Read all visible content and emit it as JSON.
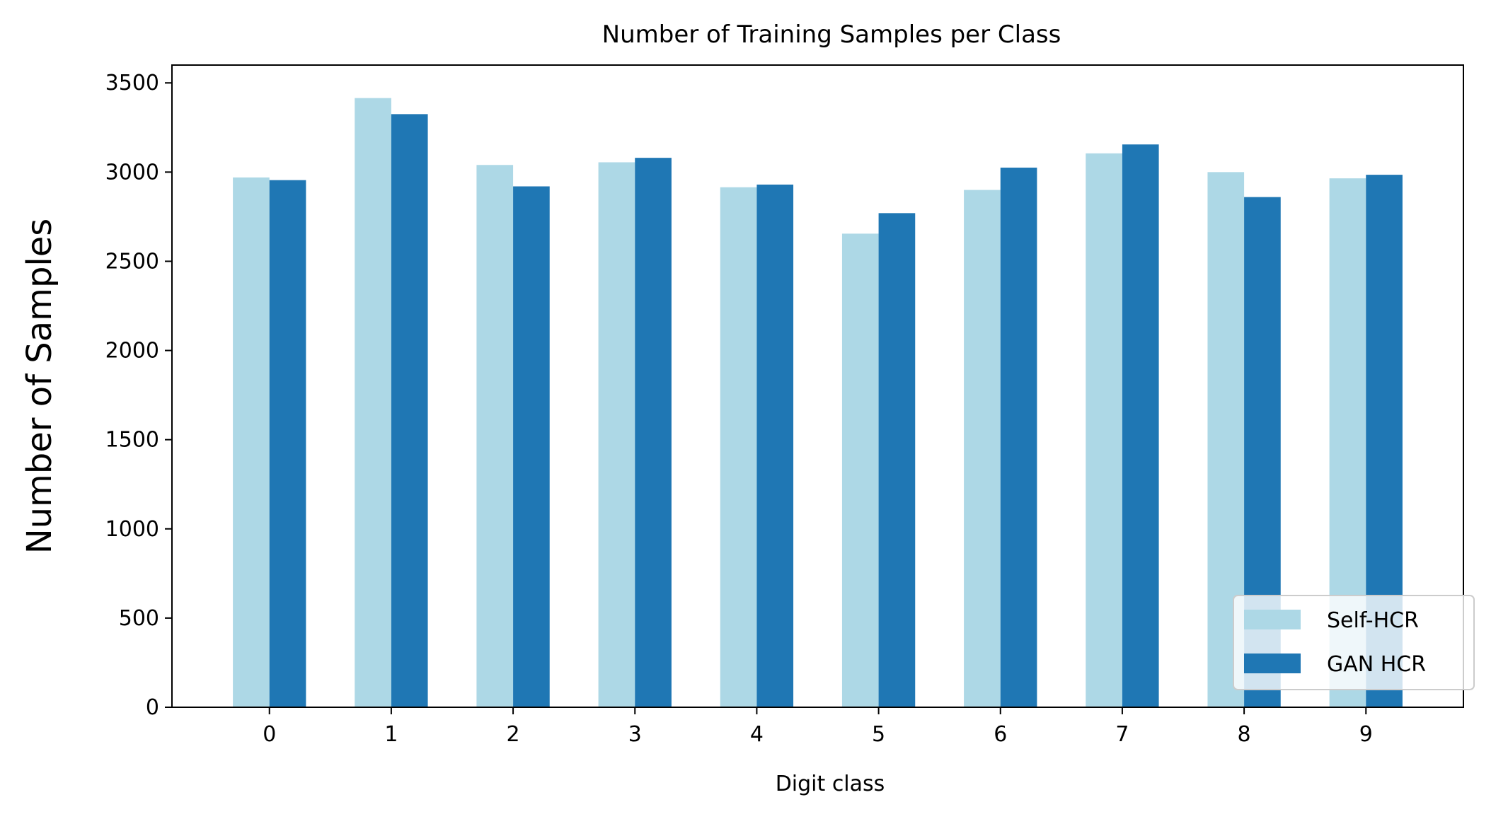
{
  "chart_data": {
    "type": "bar",
    "title": "Number of Training Samples per Class",
    "xlabel": "Digit class",
    "ylabel": "Number of Samples",
    "categories": [
      "0",
      "1",
      "2",
      "3",
      "4",
      "5",
      "6",
      "7",
      "8",
      "9"
    ],
    "series": [
      {
        "name": "Self-HCR",
        "color": "#add8e6",
        "values": [
          2970,
          3415,
          3040,
          3055,
          2915,
          2655,
          2900,
          3105,
          3000,
          2965
        ]
      },
      {
        "name": "GAN HCR",
        "color": "#1f77b4",
        "values": [
          2955,
          3325,
          2920,
          3080,
          2930,
          2770,
          3025,
          3155,
          2860,
          2985
        ]
      }
    ],
    "ylim": [
      0,
      3600
    ],
    "yticks": [
      0,
      500,
      1000,
      1500,
      2000,
      2500,
      3000,
      3500
    ],
    "grid": false,
    "legend_position": "lower-right"
  }
}
